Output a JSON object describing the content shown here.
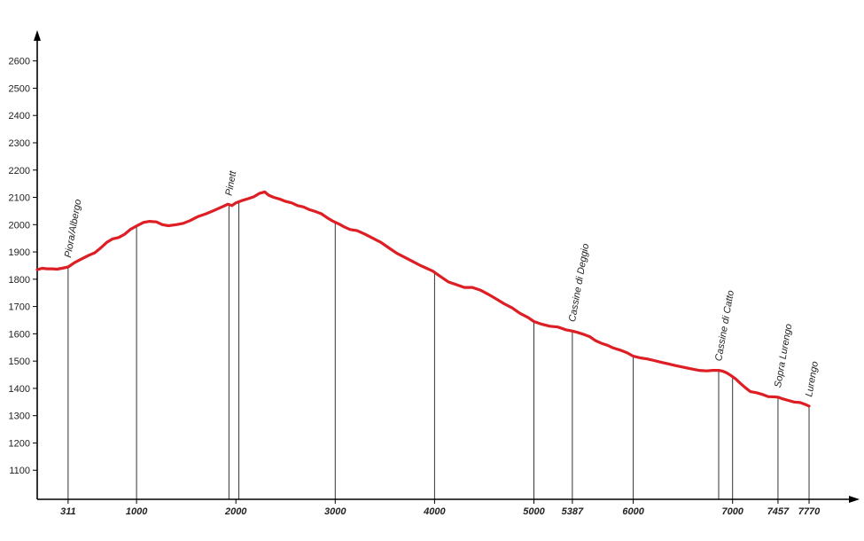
{
  "chart_data": {
    "type": "line",
    "xlim": [
      0,
      8150
    ],
    "ylim": [
      1000,
      2700
    ],
    "y_ticks": [
      1100,
      1200,
      1300,
      1400,
      1500,
      1600,
      1700,
      1800,
      1900,
      2000,
      2100,
      2200,
      2300,
      2400,
      2500,
      2600
    ],
    "x_ticks": [
      311,
      1000,
      2000,
      3000,
      4000,
      5000,
      5387,
      6000,
      7000,
      7457,
      7770
    ],
    "colors": {
      "line": "#dd1e24",
      "axis": "#000000",
      "dropline": "#333333"
    },
    "grid": false,
    "series": [
      {
        "values_x": [
          0,
          50,
          100,
          150,
          200,
          250,
          311,
          380,
          450,
          520,
          580,
          640,
          700,
          760,
          820,
          880,
          940,
          1000,
          1070,
          1130,
          1200,
          1260,
          1320,
          1400,
          1470,
          1540,
          1620,
          1700,
          1780,
          1860,
          1920,
          1960,
          2000,
          2060,
          2120,
          2180,
          2240,
          2290,
          2330,
          2380,
          2440,
          2500,
          2560,
          2620,
          2680,
          2740,
          2800,
          2860,
          2920,
          2980,
          3040,
          3090,
          3150,
          3220,
          3300,
          3380,
          3460,
          3540,
          3620,
          3700,
          3780,
          3860,
          3920,
          3980,
          4060,
          4140,
          4220,
          4300,
          4380,
          4460,
          4540,
          4620,
          4700,
          4780,
          4860,
          4940,
          5000,
          5080,
          5160,
          5240,
          5320,
          5387,
          5440,
          5500,
          5560,
          5620,
          5680,
          5740,
          5800,
          5870,
          5940,
          6000,
          6070,
          6140,
          6210,
          6280,
          6350,
          6420,
          6500,
          6580,
          6660,
          6740,
          6800,
          6860,
          6900,
          6940,
          6980,
          7030,
          7080,
          7130,
          7180,
          7240,
          7300,
          7360,
          7420,
          7457,
          7500,
          7560,
          7620,
          7680,
          7740,
          7770
        ],
        "values_y": [
          1835,
          1840,
          1838,
          1838,
          1837,
          1840,
          1845,
          1862,
          1875,
          1888,
          1897,
          1915,
          1935,
          1948,
          1953,
          1965,
          1983,
          1995,
          2008,
          2012,
          2010,
          2000,
          1996,
          2000,
          2005,
          2015,
          2030,
          2040,
          2052,
          2065,
          2075,
          2070,
          2080,
          2088,
          2095,
          2102,
          2115,
          2120,
          2108,
          2100,
          2094,
          2085,
          2080,
          2070,
          2065,
          2055,
          2048,
          2040,
          2025,
          2012,
          2002,
          1992,
          1982,
          1978,
          1965,
          1950,
          1935,
          1915,
          1895,
          1880,
          1865,
          1850,
          1840,
          1830,
          1810,
          1790,
          1780,
          1770,
          1770,
          1760,
          1745,
          1728,
          1710,
          1695,
          1675,
          1660,
          1645,
          1635,
          1628,
          1625,
          1615,
          1610,
          1605,
          1598,
          1590,
          1575,
          1565,
          1558,
          1548,
          1540,
          1530,
          1518,
          1512,
          1508,
          1502,
          1496,
          1490,
          1484,
          1478,
          1472,
          1466,
          1464,
          1466,
          1466,
          1463,
          1457,
          1448,
          1435,
          1418,
          1402,
          1388,
          1384,
          1378,
          1370,
          1369,
          1368,
          1362,
          1356,
          1350,
          1348,
          1340,
          1335
        ]
      }
    ],
    "dropline_x": [
      311,
      1000,
      1930,
      2030,
      3000,
      4000,
      5000,
      5387,
      6000,
      6860,
      7000,
      7457,
      7770
    ],
    "annotations": [
      {
        "text": "Piora/Albergo",
        "x": 311,
        "y": 1845
      },
      {
        "text": "Pinett",
        "x": 1930,
        "y": 2072
      },
      {
        "text": "Cassine di Deggio",
        "x": 5387,
        "y": 1610
      },
      {
        "text": "Cassine di Catto",
        "x": 6860,
        "y": 1466
      },
      {
        "text": "Sopra Lurengo",
        "x": 7457,
        "y": 1369
      },
      {
        "text": "Lurengo",
        "x": 7770,
        "y": 1335
      }
    ]
  }
}
